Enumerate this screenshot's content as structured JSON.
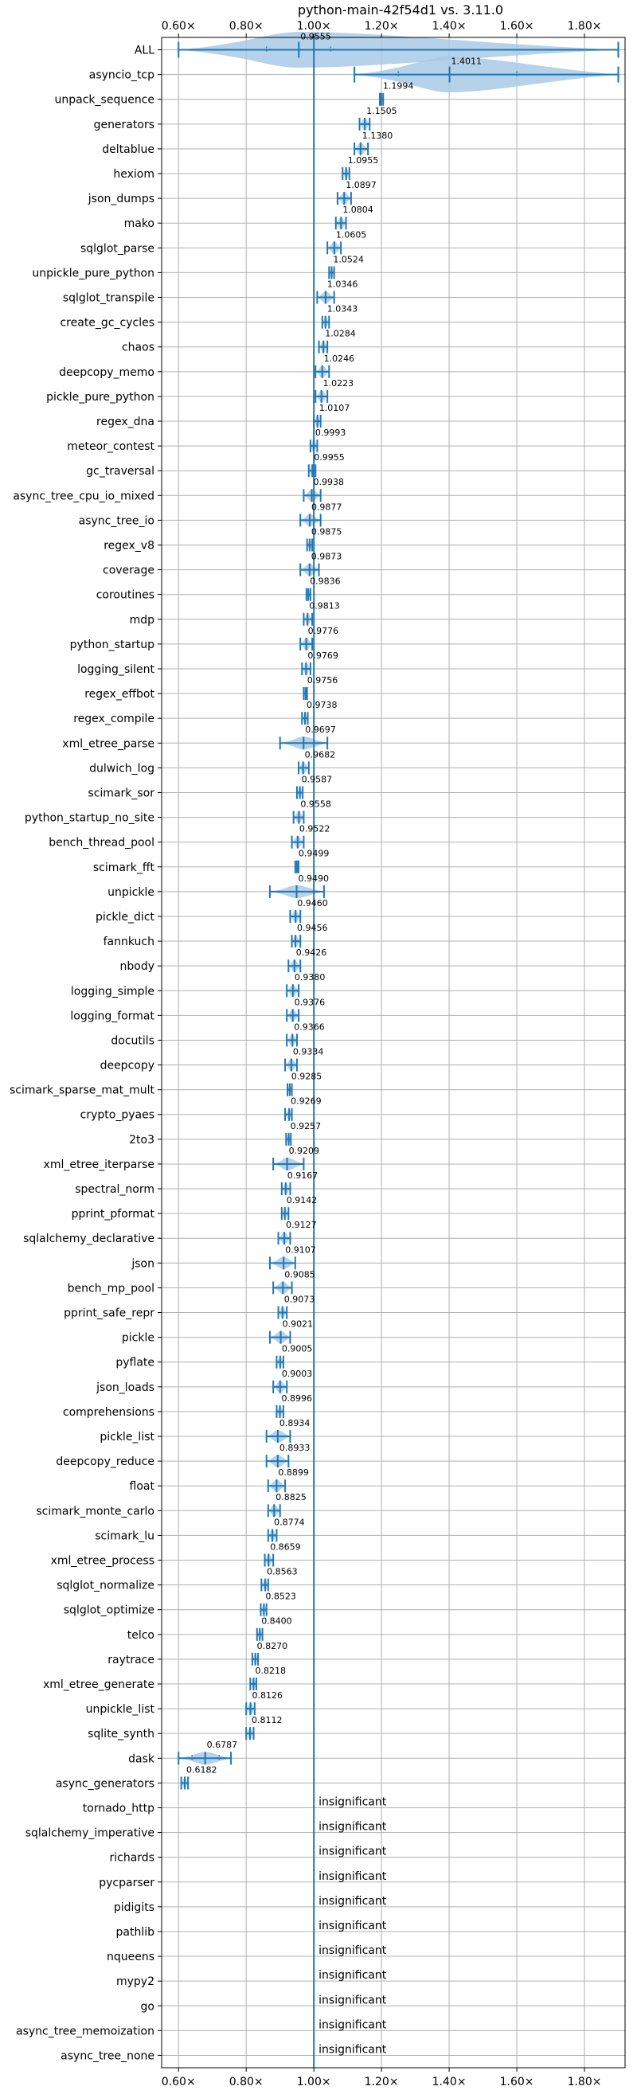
{
  "chart_data": {
    "type": "violin",
    "title": "python-main-42f54d1 vs. 3.11.0",
    "xlim": [
      0.55,
      1.92
    ],
    "xticks": [
      0.6,
      0.8,
      1.0,
      1.2,
      1.4,
      1.6,
      1.8
    ],
    "xtick_labels": [
      "0.60×",
      "0.80×",
      "1.00×",
      "1.20×",
      "1.40×",
      "1.60×",
      "1.80×"
    ],
    "reference_line": 1.0,
    "grid": true,
    "colors": {
      "violin": "#a9c9e6",
      "line": "#1f77b4",
      "grid": "#b0b0b0"
    },
    "insignificant_label": "insignificant",
    "benchmarks": [
      {
        "name": "ALL",
        "median": 0.9555,
        "label": "0.9555",
        "min": 0.6,
        "max": 1.9,
        "q1": 0.86,
        "q3": 1.05
      },
      {
        "name": "asyncio_tcp",
        "median": 1.4011,
        "label": "1.4011",
        "min": 1.12,
        "max": 1.9,
        "q1": 1.25,
        "q3": 1.6
      },
      {
        "name": "unpack_sequence",
        "median": 1.1994,
        "label": "1.1994",
        "min": 1.195,
        "max": 1.205
      },
      {
        "name": "generators",
        "median": 1.1505,
        "label": "1.1505",
        "min": 1.135,
        "max": 1.165
      },
      {
        "name": "deltablue",
        "median": 1.138,
        "label": "1.1380",
        "min": 1.12,
        "max": 1.16
      },
      {
        "name": "hexiom",
        "median": 1.0955,
        "label": "1.0955",
        "min": 1.085,
        "max": 1.105
      },
      {
        "name": "json_dumps",
        "median": 1.0897,
        "label": "1.0897",
        "min": 1.07,
        "max": 1.11
      },
      {
        "name": "mako",
        "median": 1.0804,
        "label": "1.0804",
        "min": 1.065,
        "max": 1.095
      },
      {
        "name": "sqlglot_parse",
        "median": 1.0605,
        "label": "1.0605",
        "min": 1.04,
        "max": 1.08
      },
      {
        "name": "unpickle_pure_python",
        "median": 1.0524,
        "label": "1.0524",
        "min": 1.045,
        "max": 1.06
      },
      {
        "name": "sqlglot_transpile",
        "median": 1.0346,
        "label": "1.0346",
        "min": 1.01,
        "max": 1.06
      },
      {
        "name": "create_gc_cycles",
        "median": 1.0343,
        "label": "1.0343",
        "min": 1.025,
        "max": 1.045
      },
      {
        "name": "chaos",
        "median": 1.0284,
        "label": "1.0284",
        "min": 1.015,
        "max": 1.04
      },
      {
        "name": "deepcopy_memo",
        "median": 1.0246,
        "label": "1.0246",
        "min": 1.005,
        "max": 1.045
      },
      {
        "name": "pickle_pure_python",
        "median": 1.0223,
        "label": "1.0223",
        "min": 1.005,
        "max": 1.04
      },
      {
        "name": "regex_dna",
        "median": 1.0107,
        "label": "1.0107",
        "min": 1.0,
        "max": 1.02
      },
      {
        "name": "meteor_contest",
        "median": 0.9993,
        "label": "0.9993",
        "min": 0.99,
        "max": 1.01
      },
      {
        "name": "gc_traversal",
        "median": 0.9955,
        "label": "0.9955",
        "min": 0.985,
        "max": 1.005
      },
      {
        "name": "async_tree_cpu_io_mixed",
        "median": 0.9938,
        "label": "0.9938",
        "min": 0.97,
        "max": 1.02
      },
      {
        "name": "async_tree_io",
        "median": 0.9877,
        "label": "0.9877",
        "min": 0.96,
        "max": 1.02
      },
      {
        "name": "regex_v8",
        "median": 0.9875,
        "label": "0.9875",
        "min": 0.98,
        "max": 0.995
      },
      {
        "name": "coverage",
        "median": 0.9873,
        "label": "0.9873",
        "min": 0.96,
        "max": 1.015
      },
      {
        "name": "coroutines",
        "median": 0.9836,
        "label": "0.9836",
        "min": 0.978,
        "max": 0.99
      },
      {
        "name": "mdp",
        "median": 0.9813,
        "label": "0.9813",
        "min": 0.97,
        "max": 0.995
      },
      {
        "name": "python_startup",
        "median": 0.9776,
        "label": "0.9776",
        "min": 0.96,
        "max": 0.995
      },
      {
        "name": "logging_silent",
        "median": 0.9769,
        "label": "0.9769",
        "min": 0.965,
        "max": 0.99
      },
      {
        "name": "regex_effbot",
        "median": 0.9756,
        "label": "0.9756",
        "min": 0.97,
        "max": 0.98
      },
      {
        "name": "regex_compile",
        "median": 0.9738,
        "label": "0.9738",
        "min": 0.965,
        "max": 0.982
      },
      {
        "name": "xml_etree_parse",
        "median": 0.9697,
        "label": "0.9697",
        "min": 0.9,
        "max": 1.04
      },
      {
        "name": "dulwich_log",
        "median": 0.9682,
        "label": "0.9682",
        "min": 0.955,
        "max": 0.985
      },
      {
        "name": "scimark_sor",
        "median": 0.9587,
        "label": "0.9587",
        "min": 0.95,
        "max": 0.967
      },
      {
        "name": "python_startup_no_site",
        "median": 0.9558,
        "label": "0.9558",
        "min": 0.94,
        "max": 0.97
      },
      {
        "name": "bench_thread_pool",
        "median": 0.9522,
        "label": "0.9522",
        "min": 0.935,
        "max": 0.97
      },
      {
        "name": "scimark_fft",
        "median": 0.9499,
        "label": "0.9499",
        "min": 0.945,
        "max": 0.955
      },
      {
        "name": "unpickle",
        "median": 0.949,
        "label": "0.9490",
        "min": 0.87,
        "max": 1.03
      },
      {
        "name": "pickle_dict",
        "median": 0.946,
        "label": "0.9460",
        "min": 0.93,
        "max": 0.96
      },
      {
        "name": "fannkuch",
        "median": 0.9456,
        "label": "0.9456",
        "min": 0.935,
        "max": 0.96
      },
      {
        "name": "nbody",
        "median": 0.9426,
        "label": "0.9426",
        "min": 0.925,
        "max": 0.96
      },
      {
        "name": "logging_simple",
        "median": 0.938,
        "label": "0.9380",
        "min": 0.92,
        "max": 0.955
      },
      {
        "name": "logging_format",
        "median": 0.9376,
        "label": "0.9376",
        "min": 0.92,
        "max": 0.955
      },
      {
        "name": "docutils",
        "median": 0.9366,
        "label": "0.9366",
        "min": 0.92,
        "max": 0.95
      },
      {
        "name": "deepcopy",
        "median": 0.9334,
        "label": "0.9334",
        "min": 0.915,
        "max": 0.95
      },
      {
        "name": "scimark_sparse_mat_mult",
        "median": 0.9285,
        "label": "0.9285",
        "min": 0.922,
        "max": 0.935
      },
      {
        "name": "crypto_pyaes",
        "median": 0.9269,
        "label": "0.9269",
        "min": 0.915,
        "max": 0.935
      },
      {
        "name": "2to3",
        "median": 0.9257,
        "label": "0.9257",
        "min": 0.918,
        "max": 0.932
      },
      {
        "name": "xml_etree_iterparse",
        "median": 0.9209,
        "label": "0.9209",
        "min": 0.88,
        "max": 0.97
      },
      {
        "name": "spectral_norm",
        "median": 0.9167,
        "label": "0.9167",
        "min": 0.905,
        "max": 0.93
      },
      {
        "name": "pprint_pformat",
        "median": 0.9142,
        "label": "0.9142",
        "min": 0.905,
        "max": 0.925
      },
      {
        "name": "sqlalchemy_declarative",
        "median": 0.9127,
        "label": "0.9127",
        "min": 0.895,
        "max": 0.93
      },
      {
        "name": "json",
        "median": 0.9107,
        "label": "0.9107",
        "min": 0.87,
        "max": 0.945
      },
      {
        "name": "bench_mp_pool",
        "median": 0.9085,
        "label": "0.9085",
        "min": 0.88,
        "max": 0.935
      },
      {
        "name": "pprint_safe_repr",
        "median": 0.9073,
        "label": "0.9073",
        "min": 0.895,
        "max": 0.92
      },
      {
        "name": "pickle",
        "median": 0.9021,
        "label": "0.9021",
        "min": 0.87,
        "max": 0.93
      },
      {
        "name": "pyflate",
        "median": 0.9005,
        "label": "0.9005",
        "min": 0.89,
        "max": 0.91
      },
      {
        "name": "json_loads",
        "median": 0.9003,
        "label": "0.9003",
        "min": 0.88,
        "max": 0.92
      },
      {
        "name": "comprehensions",
        "median": 0.8996,
        "label": "0.8996",
        "min": 0.89,
        "max": 0.91
      },
      {
        "name": "pickle_list",
        "median": 0.8934,
        "label": "0.8934",
        "min": 0.86,
        "max": 0.93
      },
      {
        "name": "deepcopy_reduce",
        "median": 0.8933,
        "label": "0.8933",
        "min": 0.86,
        "max": 0.925
      },
      {
        "name": "float",
        "median": 0.8899,
        "label": "0.8899",
        "min": 0.865,
        "max": 0.915
      },
      {
        "name": "scimark_monte_carlo",
        "median": 0.8825,
        "label": "0.8825",
        "min": 0.865,
        "max": 0.9
      },
      {
        "name": "scimark_lu",
        "median": 0.8774,
        "label": "0.8774",
        "min": 0.865,
        "max": 0.89
      },
      {
        "name": "xml_etree_process",
        "median": 0.8659,
        "label": "0.8659",
        "min": 0.855,
        "max": 0.88
      },
      {
        "name": "sqlglot_normalize",
        "median": 0.8563,
        "label": "0.8563",
        "min": 0.845,
        "max": 0.865
      },
      {
        "name": "sqlglot_optimize",
        "median": 0.8523,
        "label": "0.8523",
        "min": 0.843,
        "max": 0.86
      },
      {
        "name": "telco",
        "median": 0.84,
        "label": "0.8400",
        "min": 0.832,
        "max": 0.848
      },
      {
        "name": "raytrace",
        "median": 0.827,
        "label": "0.8270",
        "min": 0.818,
        "max": 0.835
      },
      {
        "name": "xml_etree_generate",
        "median": 0.8218,
        "label": "0.8218",
        "min": 0.812,
        "max": 0.83
      },
      {
        "name": "unpickle_list",
        "median": 0.8126,
        "label": "0.8126",
        "min": 0.8,
        "max": 0.825
      },
      {
        "name": "sqlite_synth",
        "median": 0.8112,
        "label": "0.8112",
        "min": 0.8,
        "max": 0.822
      },
      {
        "name": "dask",
        "median": 0.6787,
        "label": "0.6787",
        "min": 0.6,
        "max": 0.755,
        "q1": 0.64,
        "q3": 0.72
      },
      {
        "name": "async_generators",
        "median": 0.6182,
        "label": "0.6182",
        "min": 0.608,
        "max": 0.628
      },
      {
        "name": "tornado_http",
        "median": null
      },
      {
        "name": "sqlalchemy_imperative",
        "median": null
      },
      {
        "name": "richards",
        "median": null
      },
      {
        "name": "pycparser",
        "median": null
      },
      {
        "name": "pidigits",
        "median": null
      },
      {
        "name": "pathlib",
        "median": null
      },
      {
        "name": "nqueens",
        "median": null
      },
      {
        "name": "mypy2",
        "median": null
      },
      {
        "name": "go",
        "median": null
      },
      {
        "name": "async_tree_memoization",
        "median": null
      },
      {
        "name": "async_tree_none",
        "median": null
      }
    ]
  }
}
